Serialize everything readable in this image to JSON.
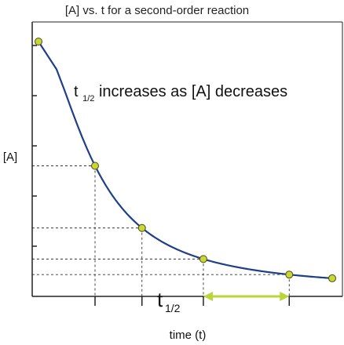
{
  "chart_data": {
    "type": "line",
    "title": "[A] vs. t for a second-order reaction",
    "xlabel": "time (t)",
    "ylabel": "[A]",
    "grid": false,
    "legend": "none",
    "x_tick_count": 4,
    "y_tick_count": 5,
    "series": [
      {
        "values": "1 / (1 + 0.01 * t)",
        "points": [
          {
            "x": 0,
            "y": 1.0
          },
          {
            "x": 100,
            "y": 0.5
          },
          {
            "x": 300,
            "y": 0.25
          },
          {
            "x": 700,
            "y": 0.125
          },
          {
            "x": 1500,
            "y": 0.0625
          }
        ],
        "extra_point": {
          "x": 2000,
          "y": 0.0476
        },
        "curve_x_range": [
          0,
          2000
        ]
      }
    ],
    "xlim": [
      0,
      2000
    ],
    "ylim": [
      0,
      1.0
    ],
    "annotation": {
      "main": "t",
      "sub": "1/2",
      "rest": " increases as [A] decreases"
    },
    "half_life_label": {
      "main": "t",
      "sub": "1/2",
      "from_x": 700,
      "to_x": 1500
    },
    "colors": {
      "curve": "#1f3f8a",
      "marker_fill": "#c7d931",
      "marker_stroke": "#4a4a1a",
      "arrow": "#b9d53a",
      "axis": "#222222",
      "dashed": "#333333"
    }
  }
}
